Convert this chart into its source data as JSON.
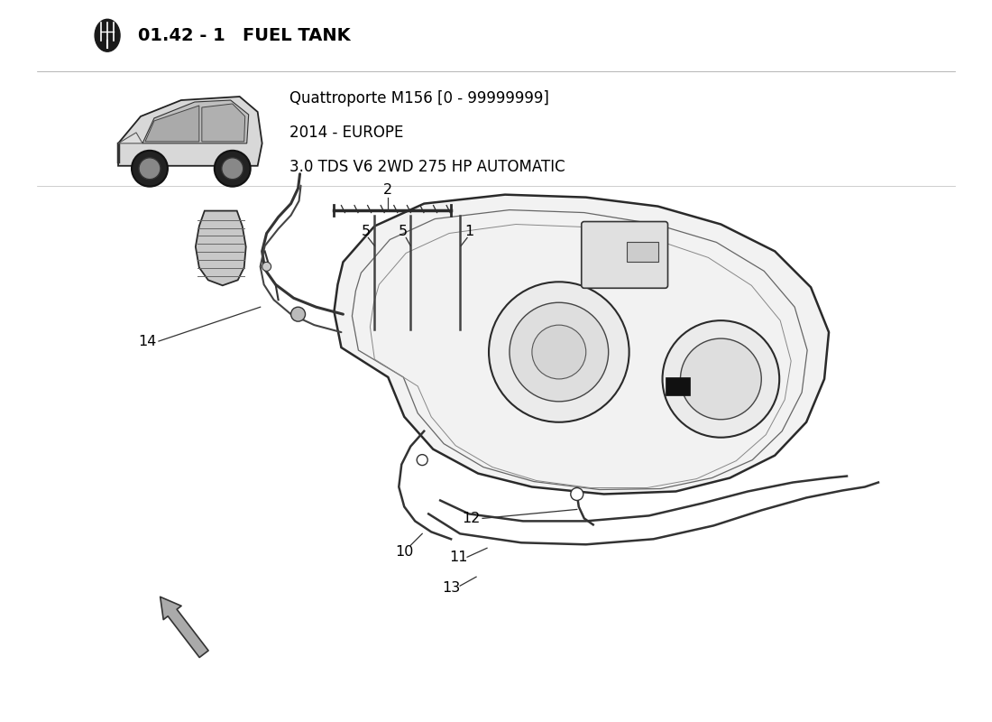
{
  "title_number": "01.42 - 1",
  "title_text": "FUEL TANK",
  "car_model_line1": "Quattroporte M156 [0 - 99999999]",
  "car_model_line2": "2014 - EUROPE",
  "car_model_line3": "3.0 TDS V6 2WD 275 HP AUTOMATIC",
  "bg_color": "#ffffff",
  "line_color": "#333333",
  "text_color": "#000000",
  "arrow_color": "#555555"
}
